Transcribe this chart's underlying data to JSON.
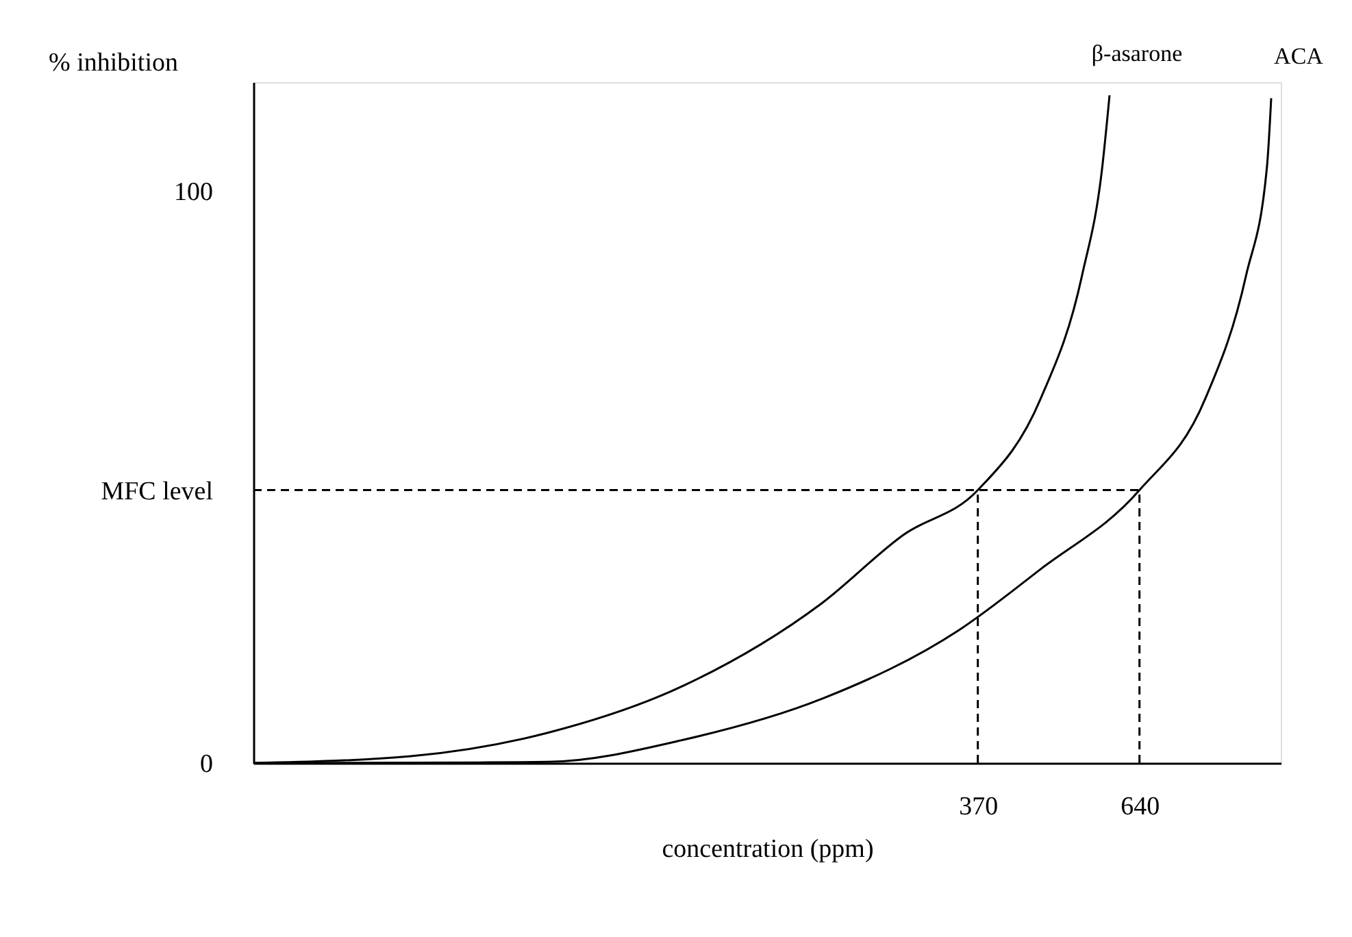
{
  "chart_data": {
    "type": "line",
    "xlabel": "concentration  (ppm)",
    "ylabel": "% inhibition",
    "xlim": [
      -840,
      876
    ],
    "ylim": [
      0,
      119
    ],
    "xticks": [
      370,
      640
    ],
    "yticks": [
      0,
      {
        "value": 47.7,
        "label": "MFC level"
      },
      100
    ],
    "grid": false,
    "legend": false,
    "marker": "none",
    "series": [
      {
        "name": "β-asarone",
        "color": "#000000",
        "line_style": "solid",
        "x": [
          -840,
          -577,
          -348,
          -120,
          109,
          246,
          370,
          475,
          544,
          578,
          590
        ],
        "values": [
          0,
          1.2,
          5.3,
          13.6,
          27.9,
          39.9,
          47.7,
          63.7,
          85.2,
          104.3,
          116.7
        ]
      },
      {
        "name": "ACA",
        "color": "#000000",
        "line_style": "solid",
        "x": [
          -840,
          -463,
          -348,
          -120,
          109,
          338,
          475,
          640,
          750,
          818,
          853,
          860
        ],
        "values": [
          0,
          0.1,
          0.2,
          4.1,
          11.2,
          23.2,
          33.9,
          47.7,
          63.7,
          85.2,
          104.3,
          116.2
        ]
      },
      {
        "color": "#000000",
        "line_style": "dashed",
        "x": [
          -840,
          640
        ],
        "values": [
          47.7,
          47.7
        ]
      },
      {
        "color": "#000000",
        "line_style": "dashed",
        "x": [
          370,
          370
        ],
        "values": [
          0,
          47.7
        ]
      },
      {
        "color": "#000000",
        "line_style": "dashed",
        "x": [
          640,
          640
        ],
        "values": [
          0,
          47.7
        ]
      }
    ]
  }
}
